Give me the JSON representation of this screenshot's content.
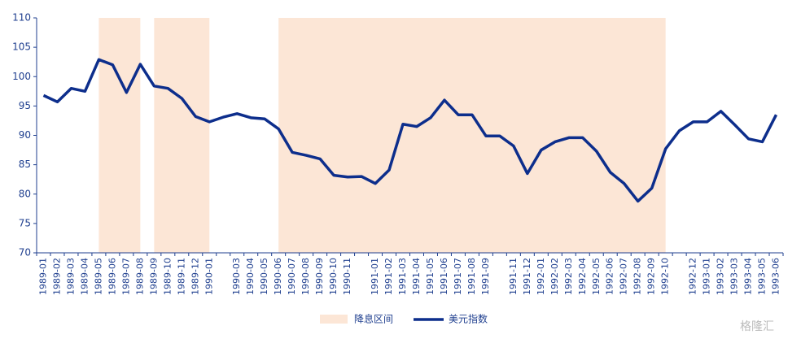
{
  "chart_data": {
    "type": "line",
    "categories": [
      "1989-01",
      "1989-02",
      "1989-03",
      "1989-04",
      "1989-05",
      "1989-06",
      "1989-07",
      "1989-08",
      "1989-09",
      "1989-10",
      "1989-11",
      "1989-12",
      "1990-01",
      null,
      "1990-03",
      "1990-04",
      "1990-05",
      "1990-06",
      "1990-07",
      "1990-08",
      "1990-09",
      "1990-10",
      "1990-11",
      null,
      "1991-01",
      "1991-02",
      "1991-03",
      "1991-04",
      "1991-05",
      "1991-06",
      "1991-07",
      "1991-08",
      "1991-09",
      null,
      "1991-11",
      "1991-12",
      "1992-01",
      "1992-02",
      "1992-03",
      "1992-04",
      "1992-05",
      "1992-06",
      "1992-07",
      "1992-08",
      "1992-09",
      "1992-10",
      null,
      "1992-12",
      "1993-01",
      "1993-02",
      "1993-03",
      "1993-04",
      "1993-05",
      "1993-06"
    ],
    "series": [
      {
        "name": "美元指数",
        "color": "#0d2e8c",
        "values": [
          96.8,
          95.7,
          98,
          97.5,
          102.9,
          102,
          97.3,
          102.1,
          98.4,
          98,
          96.3,
          93.2,
          92.3,
          93.1,
          93.7,
          93,
          92.8,
          91.1,
          87.1,
          86.6,
          86,
          83.2,
          82.9,
          83,
          81.8,
          84.1,
          91.9,
          91.5,
          93,
          96,
          93.5,
          93.5,
          89.9,
          89.9,
          88.2,
          83.5,
          87.5,
          88.9,
          89.6,
          89.6,
          87.3,
          83.7,
          81.8,
          78.8,
          81,
          87.7,
          90.8,
          92.3,
          92.3,
          94.1,
          91.8,
          89.4,
          88.9,
          93.5
        ]
      }
    ],
    "shaded": {
      "name": "降息区间",
      "color": "#fce6d6",
      "ranges": [
        [
          "1989-05",
          "1989-08"
        ],
        [
          "1989-09",
          "1990-01"
        ],
        [
          "1990-06",
          "1992-10"
        ]
      ]
    },
    "ylim": [
      70,
      110
    ],
    "yticks": [
      70,
      75,
      80,
      85,
      90,
      95,
      100,
      105,
      110
    ],
    "watermark": "格隆汇"
  }
}
